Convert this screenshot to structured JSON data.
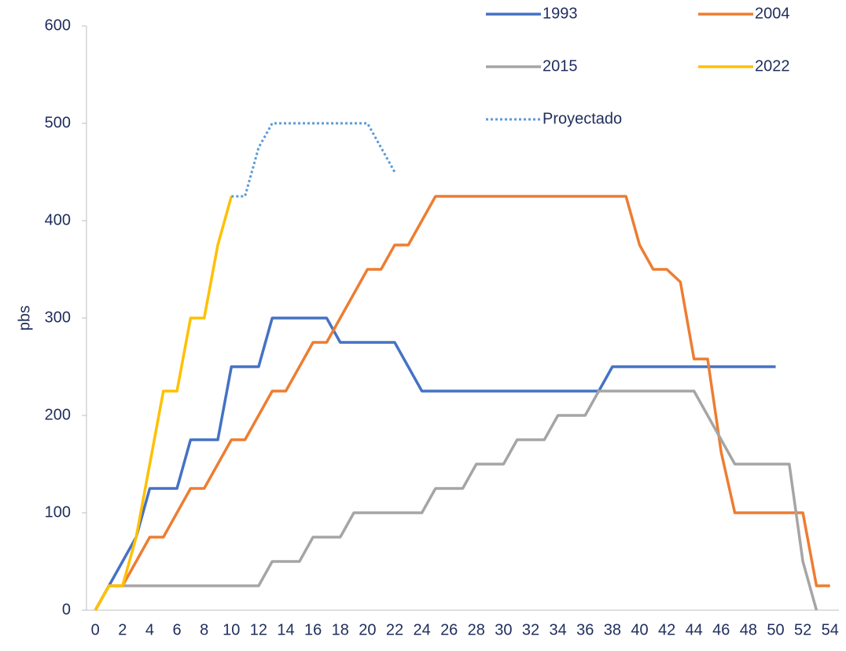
{
  "chart_data": {
    "type": "line",
    "y_label": "pbs",
    "x": [
      0,
      1,
      2,
      3,
      4,
      5,
      6,
      7,
      8,
      9,
      10,
      11,
      12,
      13,
      14,
      15,
      16,
      17,
      18,
      19,
      20,
      21,
      22,
      23,
      24,
      25,
      26,
      27,
      28,
      29,
      30,
      31,
      32,
      33,
      34,
      35,
      36,
      37,
      38,
      39,
      40,
      41,
      42,
      43,
      44,
      45,
      46,
      47,
      48,
      49,
      50,
      51,
      52,
      53,
      54
    ],
    "xlim": [
      -0.65,
      54.65
    ],
    "xticks": [
      0,
      2,
      4,
      6,
      8,
      10,
      12,
      14,
      16,
      18,
      20,
      22,
      24,
      26,
      28,
      30,
      32,
      34,
      36,
      38,
      40,
      42,
      44,
      46,
      48,
      50,
      52,
      54
    ],
    "ylim": [
      0,
      600
    ],
    "yticks": [
      0,
      100,
      200,
      300,
      400,
      500,
      600
    ],
    "grid": false,
    "legend": "top-right",
    "series": [
      {
        "name": "1993",
        "color": "#4472c4",
        "values": [
          0,
          25,
          50,
          75,
          125,
          125,
          125,
          175,
          175,
          175,
          250,
          250,
          250,
          300,
          300,
          300,
          300,
          300,
          275,
          275,
          275,
          275,
          275,
          250,
          225,
          225,
          225,
          225,
          225,
          225,
          225,
          225,
          225,
          225,
          225,
          225,
          225,
          225,
          250,
          250,
          250,
          250,
          250,
          250,
          250,
          250,
          250,
          250,
          250,
          250,
          250,
          null,
          null,
          null,
          null
        ]
      },
      {
        "name": "2004",
        "color": "#ed7d31",
        "values": [
          0,
          25,
          25,
          50,
          75,
          75,
          100,
          125,
          125,
          150,
          175,
          175,
          200,
          225,
          225,
          250,
          275,
          275,
          300,
          325,
          350,
          350,
          375,
          375,
          400,
          425,
          425,
          425,
          425,
          425,
          425,
          425,
          425,
          425,
          425,
          425,
          425,
          425,
          425,
          425,
          375,
          350,
          350,
          337,
          258,
          258,
          162,
          100,
          100,
          100,
          100,
          100,
          100,
          25,
          25
        ]
      },
      {
        "name": "2015",
        "color": "#a5a5a5",
        "values": [
          0,
          25,
          25,
          25,
          25,
          25,
          25,
          25,
          25,
          25,
          25,
          25,
          25,
          50,
          50,
          50,
          75,
          75,
          75,
          100,
          100,
          100,
          100,
          100,
          100,
          125,
          125,
          125,
          150,
          150,
          150,
          175,
          175,
          175,
          200,
          200,
          200,
          225,
          225,
          225,
          225,
          225,
          225,
          225,
          225,
          200,
          175,
          150,
          150,
          150,
          150,
          150,
          50,
          0,
          null
        ]
      },
      {
        "name": "2022",
        "color": "#ffc000",
        "values": [
          0,
          25,
          25,
          75,
          150,
          225,
          225,
          300,
          300,
          375,
          425,
          null,
          null,
          null,
          null,
          null,
          null,
          null,
          null,
          null,
          null,
          null,
          null,
          null,
          null,
          null,
          null,
          null,
          null,
          null,
          null,
          null,
          null,
          null,
          null,
          null,
          null,
          null,
          null,
          null,
          null,
          null,
          null,
          null,
          null,
          null,
          null,
          null,
          null,
          null,
          null,
          null,
          null,
          null,
          null
        ]
      },
      {
        "name": "Proyectado",
        "color": "#5b9bd5",
        "dashed": true,
        "values": [
          null,
          null,
          null,
          null,
          null,
          null,
          null,
          null,
          null,
          null,
          425,
          425,
          475,
          500,
          500,
          500,
          500,
          500,
          500,
          500,
          500,
          475,
          450,
          null,
          null,
          null,
          null,
          null,
          null,
          null,
          null,
          null,
          null,
          null,
          null,
          null,
          null,
          null,
          null,
          null,
          null,
          null,
          null,
          null,
          null,
          null,
          null,
          null,
          null,
          null,
          null,
          null,
          null,
          null,
          null
        ]
      }
    ]
  }
}
